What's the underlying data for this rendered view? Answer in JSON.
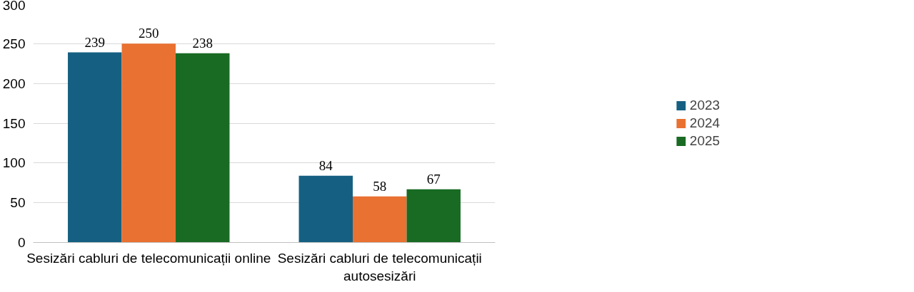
{
  "chart_data": {
    "type": "bar",
    "categories": [
      "Sesizări cabluri de telecomunicații online",
      "Sesizări cabluri de telecomunicații autosesizări"
    ],
    "series": [
      {
        "name": "2023",
        "color": "#156082",
        "values": [
          239,
          84
        ]
      },
      {
        "name": "2024",
        "color": "#e97132",
        "values": [
          250,
          58
        ]
      },
      {
        "name": "2025",
        "color": "#196b24",
        "values": [
          238,
          67
        ]
      }
    ],
    "ylim": [
      0,
      300
    ],
    "yticks": [
      0,
      50,
      100,
      150,
      200,
      250,
      300
    ],
    "grid": "y",
    "legend": "right",
    "data_labels": true
  }
}
